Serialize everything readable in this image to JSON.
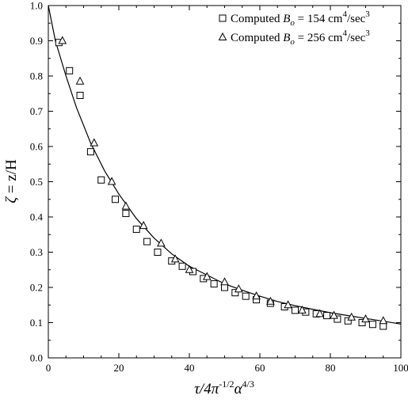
{
  "chart_data": {
    "type": "scatter",
    "xlabel": "τ/4π⁻¹ᐟ²α⁴ᐟ³",
    "ylabel": "ζ = z/H",
    "xlim": [
      0,
      100
    ],
    "ylim": [
      0,
      1.0
    ],
    "x_ticks": [
      "0",
      "20",
      "40",
      "60",
      "80",
      "100"
    ],
    "y_ticks": [
      "0.0",
      "0.1",
      "0.2",
      "0.3",
      "0.4",
      "0.5",
      "0.6",
      "0.7",
      "0.8",
      "0.9",
      "1.0"
    ],
    "grid": false,
    "legend_position": "top-right",
    "series": [
      {
        "name": "Computed B_o = 154 cm⁴/sec³",
        "label_parts": {
          "prefix": "Computed ",
          "var": "B",
          "sub": "o",
          "middle": " = 154 cm",
          "sup1": "4",
          "mid2": "/sec",
          "sup2": "3"
        },
        "marker": "square",
        "x": [
          3,
          6,
          9,
          12,
          15,
          19,
          22,
          25,
          28,
          31,
          35,
          38,
          41,
          44,
          47,
          50,
          53,
          56,
          59,
          63,
          67,
          70,
          73,
          76,
          79,
          82,
          85,
          89,
          92,
          95
        ],
        "y": [
          0.895,
          0.815,
          0.745,
          0.585,
          0.505,
          0.45,
          0.41,
          0.365,
          0.33,
          0.3,
          0.275,
          0.26,
          0.245,
          0.225,
          0.21,
          0.2,
          0.185,
          0.175,
          0.165,
          0.155,
          0.145,
          0.135,
          0.13,
          0.125,
          0.12,
          0.11,
          0.105,
          0.1,
          0.095,
          0.09
        ]
      },
      {
        "name": "Computed B_o = 256 cm⁴/sec³",
        "label_parts": {
          "prefix": "Computed ",
          "var": "B",
          "sub": "o",
          "middle": " = 256 cm",
          "sup1": "4",
          "mid2": "/sec",
          "sup2": "3"
        },
        "marker": "triangle",
        "x": [
          4,
          9,
          13,
          18,
          22,
          27,
          32,
          36,
          40,
          45,
          50,
          54,
          59,
          63,
          68,
          72,
          77,
          81,
          86,
          90,
          95
        ],
        "y": [
          0.9,
          0.785,
          0.61,
          0.5,
          0.43,
          0.375,
          0.325,
          0.28,
          0.25,
          0.23,
          0.215,
          0.195,
          0.175,
          0.16,
          0.15,
          0.135,
          0.125,
          0.12,
          0.115,
          0.11,
          0.105
        ]
      },
      {
        "marker": "line",
        "x": [
          0,
          2,
          5,
          8,
          12,
          16,
          20,
          25,
          30,
          35,
          40,
          45,
          50,
          55,
          60,
          65,
          70,
          75,
          80,
          85,
          90,
          95,
          100
        ],
        "y": [
          1.0,
          0.9,
          0.8,
          0.71,
          0.61,
          0.53,
          0.465,
          0.395,
          0.34,
          0.295,
          0.26,
          0.235,
          0.21,
          0.192,
          0.175,
          0.16,
          0.148,
          0.138,
          0.128,
          0.12,
          0.112,
          0.104,
          0.096
        ]
      }
    ]
  }
}
